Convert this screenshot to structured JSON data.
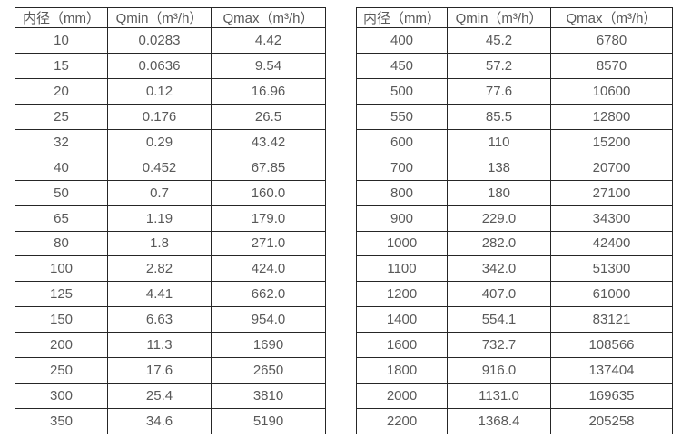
{
  "colors": {
    "background": "#ffffff",
    "text": "#595959",
    "border": "#262626"
  },
  "tables": [
    {
      "name": "flow-spec-table-small-diameters",
      "headers": [
        "内径（mm）",
        "Qmin（m³/h）",
        "Qmax（m³/h）"
      ],
      "rows": [
        [
          "10",
          "0.0283",
          "4.42"
        ],
        [
          "15",
          "0.0636",
          "9.54"
        ],
        [
          "20",
          "0.12",
          "16.96"
        ],
        [
          "25",
          "0.176",
          "26.5"
        ],
        [
          "32",
          "0.29",
          "43.42"
        ],
        [
          "40",
          "0.452",
          "67.85"
        ],
        [
          "50",
          "0.7",
          "160.0"
        ],
        [
          "65",
          "1.19",
          "179.0"
        ],
        [
          "80",
          "1.8",
          "271.0"
        ],
        [
          "100",
          "2.82",
          "424.0"
        ],
        [
          "125",
          "4.41",
          "662.0"
        ],
        [
          "150",
          "6.63",
          "954.0"
        ],
        [
          "200",
          "11.3",
          "1690"
        ],
        [
          "250",
          "17.6",
          "2650"
        ],
        [
          "300",
          "25.4",
          "3810"
        ],
        [
          "350",
          "34.6",
          "5190"
        ]
      ]
    },
    {
      "name": "flow-spec-table-large-diameters",
      "headers": [
        "内径（mm）",
        "Qmin（m³/h）",
        "Qmax（m³/h）"
      ],
      "rows": [
        [
          "400",
          "45.2",
          "6780"
        ],
        [
          "450",
          "57.2",
          "8570"
        ],
        [
          "500",
          "77.6",
          "10600"
        ],
        [
          "550",
          "85.5",
          "12800"
        ],
        [
          "600",
          "110",
          "15200"
        ],
        [
          "700",
          "138",
          "20700"
        ],
        [
          "800",
          "180",
          "27100"
        ],
        [
          "900",
          "229.0",
          "34300"
        ],
        [
          "1000",
          "282.0",
          "42400"
        ],
        [
          "1100",
          "342.0",
          "51300"
        ],
        [
          "1200",
          "407.0",
          "61000"
        ],
        [
          "1400",
          "554.1",
          "83121"
        ],
        [
          "1600",
          "732.7",
          "108566"
        ],
        [
          "1800",
          "916.0",
          "137404"
        ],
        [
          "2000",
          "1131.0",
          "169635"
        ],
        [
          "2200",
          "1368.4",
          "205258"
        ]
      ]
    }
  ]
}
